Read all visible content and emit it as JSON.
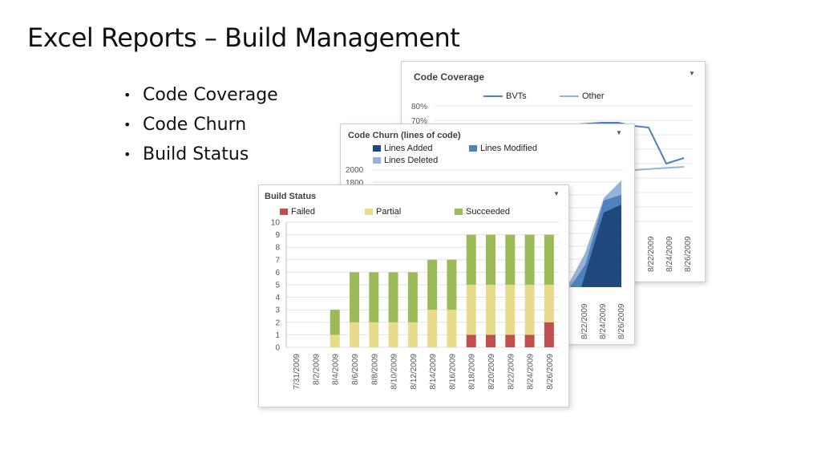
{
  "slide": {
    "title": "Excel Reports – Build Management",
    "bullets": [
      "Code Coverage",
      "Code Churn",
      "Build Status"
    ]
  },
  "colors": {
    "bvts": "#4f81bd",
    "other": "#95b3d7",
    "lines_added": "#1f497d",
    "lines_modified": "#4f81bd",
    "lines_deleted": "#95b3d7",
    "failed": "#c0504d",
    "partial": "#e8db8e",
    "succeeded": "#9bbb59"
  },
  "code_coverage": {
    "title": "Code Coverage",
    "dropdown_icon": "chevron-down-icon",
    "legend": [
      "BVTs",
      "Other"
    ],
    "y_ticks": [
      "80%",
      "70%"
    ],
    "x_labels": [
      "8/22/2009",
      "8/24/2009",
      "8/26/2009"
    ]
  },
  "code_churn": {
    "title": "Code Churn (lines of code)",
    "dropdown_icon": "chevron-down-icon",
    "legend": [
      "Lines Added",
      "Lines Modified",
      "Lines Deleted"
    ],
    "y_ticks": [
      "2000",
      "1800"
    ],
    "x_labels": [
      "8/22/2009",
      "8/24/2009",
      "8/26/2009"
    ]
  },
  "build_status": {
    "title": "Build Status",
    "dropdown_icon": "chevron-down-icon",
    "legend": [
      "Failed",
      "Partial",
      "Succeeded"
    ]
  },
  "chart_data": {
    "type": "bar",
    "stacked": true,
    "title": "Build Status",
    "categories": [
      "7/31/2009",
      "8/2/2009",
      "8/4/2009",
      "8/6/2009",
      "8/8/2009",
      "8/10/2009",
      "8/12/2009",
      "8/14/2009",
      "8/16/2009",
      "8/18/2009",
      "8/20/2009",
      "8/22/2009",
      "8/24/2009",
      "8/26/2009"
    ],
    "series": [
      {
        "name": "Failed",
        "values": [
          0,
          0,
          0,
          0,
          0,
          0,
          0,
          0,
          0,
          1,
          1,
          1,
          1,
          2
        ]
      },
      {
        "name": "Partial",
        "values": [
          0,
          0,
          1,
          2,
          2,
          2,
          2,
          3,
          3,
          4,
          4,
          4,
          4,
          3
        ]
      },
      {
        "name": "Succeeded",
        "values": [
          0,
          0,
          2,
          4,
          4,
          4,
          4,
          4,
          4,
          4,
          4,
          4,
          4,
          4
        ]
      }
    ],
    "yticks": [
      "0",
      "1",
      "2",
      "3",
      "4",
      "5",
      "6",
      "7",
      "8",
      "9",
      "10"
    ],
    "ylim": [
      0,
      10
    ],
    "grid": true,
    "legend_position": "top"
  }
}
